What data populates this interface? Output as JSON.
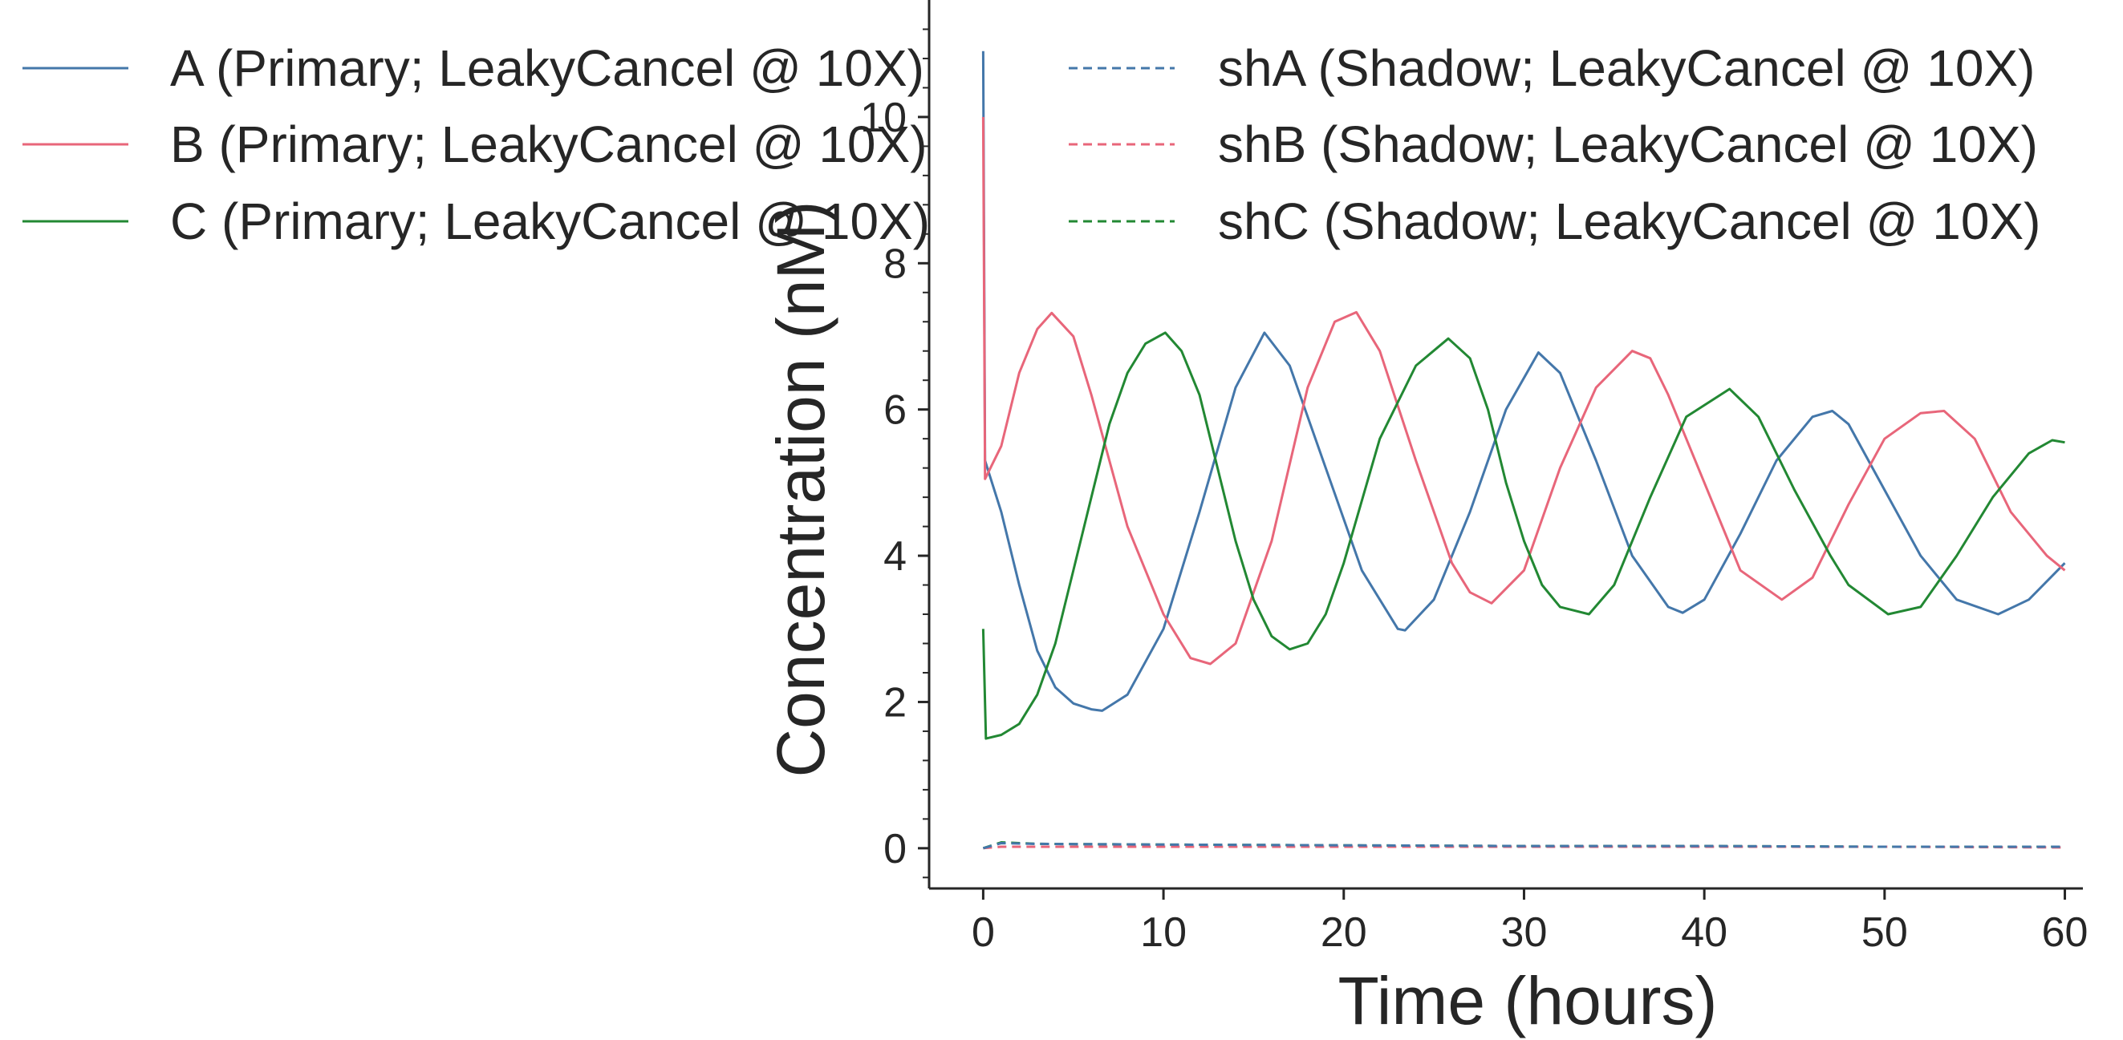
{
  "chart_data": {
    "type": "line",
    "title": "",
    "xlabel": "Time (hours)",
    "ylabel": "Concentration (nM)",
    "xlim": [
      -3,
      61
    ],
    "ylim": [
      -0.55,
      11.6
    ],
    "xticks": [
      0,
      10,
      20,
      30,
      40,
      50,
      60
    ],
    "yticks": [
      0,
      2,
      4,
      6,
      8,
      10
    ],
    "grid": false,
    "legend_position": "top",
    "colors": {
      "A": "#4477aa",
      "B": "#e8667a",
      "C": "#228833"
    },
    "series": [
      {
        "name": "A (Primary; LeakyCancel @ 10X)",
        "color": "#4477aa",
        "linestyle": "solid",
        "x": [
          0,
          0.1,
          1,
          2,
          3,
          4,
          5,
          6,
          6.6,
          8,
          10,
          12,
          14,
          15.6,
          17,
          19,
          21,
          23,
          23.4,
          25,
          27,
          29,
          30.8,
          32,
          34,
          36,
          38,
          38.8,
          40,
          42,
          44,
          46,
          47.1,
          48,
          50,
          52,
          54,
          56.3,
          58,
          60
        ],
        "y": [
          10.9,
          5.3,
          4.6,
          3.6,
          2.7,
          2.2,
          1.98,
          1.9,
          1.88,
          2.1,
          3.0,
          4.6,
          6.3,
          7.05,
          6.6,
          5.2,
          3.8,
          3.0,
          2.98,
          3.4,
          4.6,
          6.0,
          6.78,
          6.5,
          5.3,
          4.0,
          3.3,
          3.22,
          3.4,
          4.3,
          5.3,
          5.9,
          5.98,
          5.8,
          4.9,
          4.0,
          3.4,
          3.2,
          3.4,
          3.9
        ]
      },
      {
        "name": "B (Primary; LeakyCancel @ 10X)",
        "color": "#e8667a",
        "linestyle": "solid",
        "x": [
          0,
          0.1,
          1,
          2,
          3,
          3.8,
          5,
          6,
          8,
          10,
          11.5,
          12.6,
          14,
          16,
          18,
          19.5,
          20.7,
          22,
          24,
          26,
          27,
          28.2,
          30,
          32,
          34,
          36,
          37,
          38,
          40,
          42,
          44.3,
          46,
          48,
          50,
          52,
          53.3,
          55,
          57,
          59,
          60
        ],
        "y": [
          10.0,
          5.05,
          5.5,
          6.5,
          7.1,
          7.32,
          7.0,
          6.2,
          4.4,
          3.2,
          2.6,
          2.52,
          2.8,
          4.2,
          6.3,
          7.2,
          7.33,
          6.8,
          5.3,
          3.9,
          3.5,
          3.35,
          3.8,
          5.2,
          6.3,
          6.8,
          6.7,
          6.2,
          5.0,
          3.8,
          3.4,
          3.7,
          4.7,
          5.6,
          5.95,
          5.98,
          5.6,
          4.6,
          4.0,
          3.8
        ]
      },
      {
        "name": "C (Primary; LeakyCancel @ 10X)",
        "color": "#228833",
        "linestyle": "solid",
        "x": [
          0,
          0.15,
          1,
          2,
          3,
          4,
          5,
          6,
          7,
          8,
          9,
          10.1,
          11,
          12,
          13,
          14,
          15,
          16,
          17,
          18,
          19,
          20,
          22,
          24,
          25.8,
          27,
          28,
          29,
          30,
          31,
          32,
          33.6,
          35,
          37,
          39,
          41.4,
          43,
          45,
          47,
          48,
          50.2,
          52,
          54,
          56,
          58,
          59.3,
          60
        ],
        "y": [
          3.0,
          1.5,
          1.55,
          1.7,
          2.1,
          2.8,
          3.8,
          4.8,
          5.8,
          6.5,
          6.9,
          7.05,
          6.8,
          6.2,
          5.2,
          4.2,
          3.4,
          2.9,
          2.72,
          2.8,
          3.2,
          3.9,
          5.6,
          6.6,
          6.97,
          6.7,
          6.0,
          5.0,
          4.2,
          3.6,
          3.3,
          3.2,
          3.6,
          4.8,
          5.9,
          6.28,
          5.9,
          4.9,
          4.0,
          3.6,
          3.2,
          3.3,
          4.0,
          4.8,
          5.4,
          5.58,
          5.55
        ]
      },
      {
        "name": "shA (Shadow; LeakyCancel @ 10X)",
        "color": "#4477aa",
        "linestyle": "dashed",
        "x": [
          0,
          1,
          3,
          10,
          20,
          30,
          40,
          50,
          60
        ],
        "y": [
          0.0,
          0.07,
          0.06,
          0.05,
          0.04,
          0.03,
          0.03,
          0.02,
          0.02
        ]
      },
      {
        "name": "shB (Shadow; LeakyCancel @ 10X)",
        "color": "#e8667a",
        "linestyle": "dashed",
        "x": [
          0,
          1,
          3,
          10,
          20,
          30,
          40,
          50,
          60
        ],
        "y": [
          0.0,
          0.02,
          0.02,
          0.02,
          0.02,
          0.02,
          0.02,
          0.02,
          0.01
        ]
      },
      {
        "name": "shC (Shadow; LeakyCancel @ 10X)",
        "color": "#228833",
        "linestyle": "dashed",
        "x": [
          0,
          1,
          3,
          10,
          20,
          30,
          40,
          50,
          60
        ],
        "y": [
          0.0,
          0.08,
          0.06,
          0.05,
          0.04,
          0.03,
          0.03,
          0.02,
          0.02
        ]
      }
    ]
  }
}
